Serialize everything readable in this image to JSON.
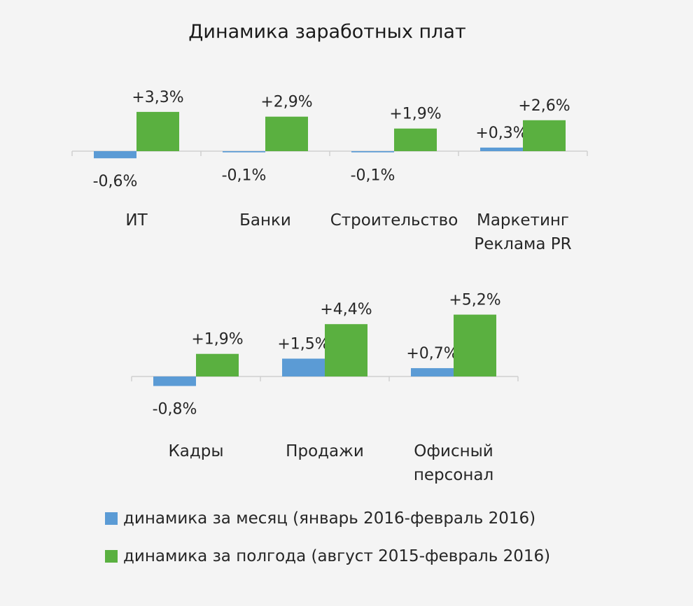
{
  "title": "Динамика заработных плат",
  "colors": {
    "month": "#5b9bd5",
    "half_year": "#5ab040"
  },
  "legend": [
    {
      "label": "динамика  за месяц (январь 2016-февраль 2016)",
      "color": "#5b9bd5"
    },
    {
      "label": "динамика за полгода (август 2015-февраль 2016)",
      "color": "#5ab040"
    }
  ],
  "chart_data": [
    {
      "type": "bar",
      "categories": [
        [
          "ИТ"
        ],
        [
          "Банки"
        ],
        [
          "Строительство"
        ],
        [
          "Маркетинг",
          "Реклама PR"
        ]
      ],
      "series": [
        {
          "name": "динамика  за месяц (январь 2016-февраль 2016)",
          "values": [
            -0.6,
            -0.1,
            -0.1,
            0.3
          ],
          "labels": [
            "-0,6%",
            "-0,1%",
            "-0,1%",
            "+0,3%"
          ]
        },
        {
          "name": "динамика за полгода (август 2015-февраль 2016)",
          "values": [
            3.3,
            2.9,
            1.9,
            2.6
          ],
          "labels": [
            "+3,3%",
            "+2,9%",
            "+1,9%",
            "+2,6%"
          ]
        }
      ],
      "ylabel": "",
      "xlabel": "",
      "grid": false
    },
    {
      "type": "bar",
      "categories": [
        [
          "Кадры"
        ],
        [
          "Продажи"
        ],
        [
          "Офисный",
          "персонал"
        ]
      ],
      "series": [
        {
          "name": "динамика  за месяц (январь 2016-февраль 2016)",
          "values": [
            -0.8,
            1.5,
            0.7
          ],
          "labels": [
            "-0,8%",
            "+1,5%",
            "+0,7%"
          ]
        },
        {
          "name": "динамика за полгода (август 2015-февраль 2016)",
          "values": [
            1.9,
            4.4,
            5.2
          ],
          "labels": [
            "+1,9%",
            "+4,4%",
            "+5,2%"
          ]
        }
      ],
      "ylabel": "",
      "xlabel": "",
      "grid": false
    }
  ]
}
